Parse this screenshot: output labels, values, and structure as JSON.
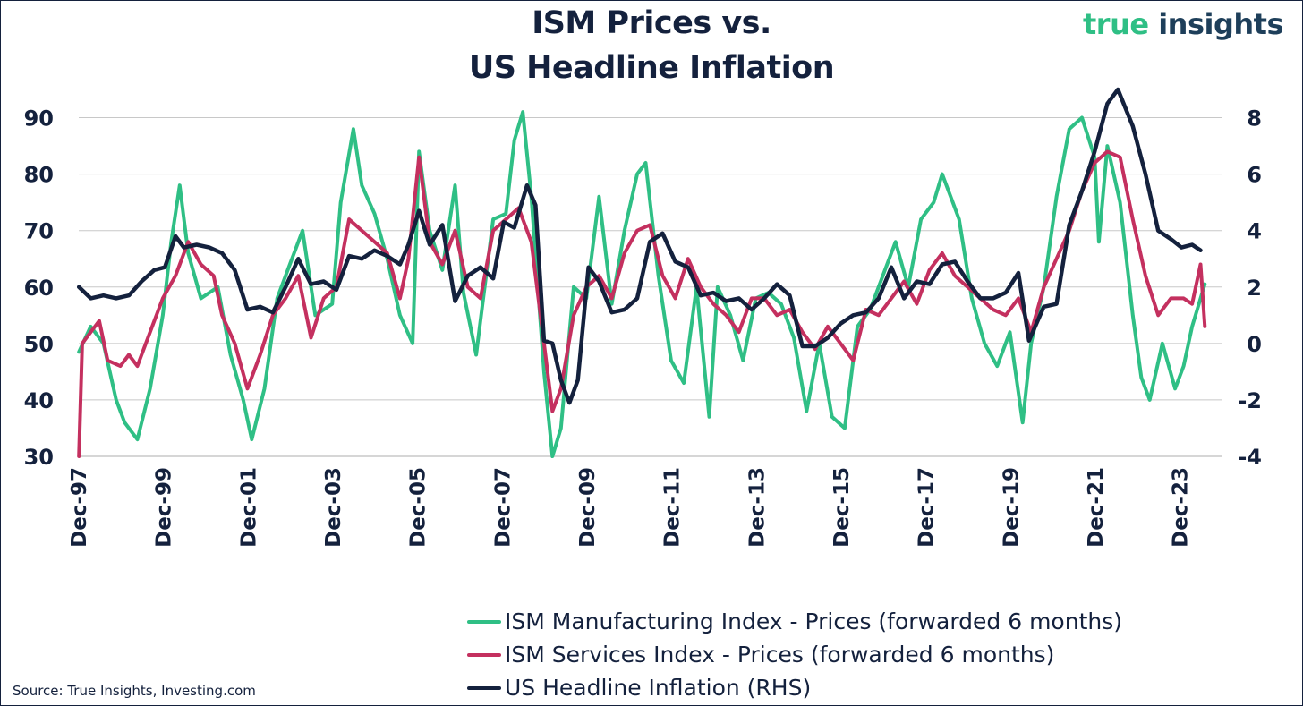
{
  "title_line1": "ISM Prices vs.",
  "title_line2": "US Headline Inflation",
  "logo_word1": "true",
  "logo_word2": "insights",
  "source": "Source: True Insights, Investing.com",
  "colors": {
    "manufacturing": "#2fbf85",
    "services": "#c4305f",
    "inflation": "#14213d",
    "grid": "#c8c8c8",
    "logo_green": "#2fbf85",
    "logo_navy": "#1e3f5a"
  },
  "chart_data": {
    "type": "line",
    "x_start": "Dec-97",
    "x_end": "Jun-24",
    "x_ticks": [
      "Dec-97",
      "Dec-99",
      "Dec-01",
      "Dec-03",
      "Dec-05",
      "Dec-07",
      "Dec-09",
      "Dec-11",
      "Dec-13",
      "Dec-15",
      "Dec-17",
      "Dec-19",
      "Dec-21",
      "Dec-23"
    ],
    "y_left": {
      "min": 30,
      "max": 95,
      "ticks": [
        30,
        40,
        50,
        60,
        70,
        80,
        90
      ]
    },
    "y_right": {
      "min": -4,
      "max": 9,
      "ticks": [
        -4,
        -2,
        0,
        2,
        4,
        6,
        8
      ]
    },
    "grid": "horizontal",
    "legend_position": "bottom-center",
    "series": [
      {
        "name": "ISM Manufacturing Index - Prices (forwarded 6 months)",
        "axis": "left",
        "x": [
          1997.92,
          1998.2,
          1998.5,
          1998.8,
          1999.0,
          1999.3,
          1999.6,
          1999.9,
          2000.1,
          2000.3,
          2000.5,
          2000.8,
          2001.2,
          2001.5,
          2001.8,
          2002.0,
          2002.3,
          2002.6,
          2002.9,
          2003.2,
          2003.5,
          2003.9,
          2004.1,
          2004.4,
          2004.6,
          2004.9,
          2005.2,
          2005.5,
          2005.8,
          2005.95,
          2006.2,
          2006.5,
          2006.8,
          2007.0,
          2007.3,
          2007.7,
          2008.0,
          2008.2,
          2008.4,
          2008.6,
          2008.9,
          2009.1,
          2009.3,
          2009.6,
          2009.9,
          2010.2,
          2010.5,
          2010.8,
          2011.1,
          2011.3,
          2011.6,
          2011.9,
          2012.2,
          2012.5,
          2012.8,
          2013.0,
          2013.3,
          2013.6,
          2013.9,
          2014.2,
          2014.5,
          2014.8,
          2015.1,
          2015.4,
          2015.7,
          2016.0,
          2016.3,
          2016.6,
          2016.9,
          2017.2,
          2017.5,
          2017.8,
          2018.1,
          2018.3,
          2018.5,
          2018.7,
          2019.0,
          2019.3,
          2019.6,
          2019.9,
          2020.2,
          2020.4,
          2020.7,
          2021.0,
          2021.3,
          2021.6,
          2021.9,
          2022.0,
          2022.2,
          2022.5,
          2022.8,
          2023.0,
          2023.2,
          2023.5,
          2023.8,
          2024.0,
          2024.2,
          2024.5
        ],
        "values": [
          48.5,
          53.0,
          50.0,
          40.0,
          36.0,
          33.0,
          42.0,
          55.0,
          68.0,
          78.0,
          66.0,
          58.0,
          60.0,
          48.0,
          40.0,
          33.0,
          42.0,
          58.0,
          64.0,
          70.0,
          55.0,
          57.0,
          75.0,
          88.0,
          78.0,
          73.0,
          65.0,
          55.0,
          50.0,
          84.0,
          70.0,
          63.0,
          78.0,
          59.0,
          48.0,
          72.0,
          73.0,
          86.0,
          91.0,
          76.0,
          45.0,
          30.0,
          35.0,
          60.0,
          58.0,
          76.0,
          57.0,
          70.0,
          80.0,
          82.0,
          62.0,
          47.0,
          43.0,
          60.0,
          37.0,
          60.0,
          55.0,
          47.0,
          58.0,
          59.0,
          57.0,
          51.0,
          38.0,
          50.0,
          37.0,
          35.0,
          53.0,
          56.0,
          62.0,
          68.0,
          60.0,
          72.0,
          75.0,
          80.0,
          76.0,
          72.0,
          58.0,
          50.0,
          46.0,
          52.0,
          36.0,
          50.0,
          60.0,
          76.0,
          88.0,
          90.0,
          83.0,
          68.0,
          85.0,
          75.0,
          55.0,
          44.0,
          40.0,
          50.0,
          42.0,
          46.0,
          53.0,
          60.5
        ]
      },
      {
        "name": "ISM Services Index - Prices (forwarded 6 months)",
        "axis": "left",
        "x": [
          1997.92,
          1998.0,
          1998.2,
          1998.4,
          1998.6,
          1998.9,
          1999.1,
          1999.3,
          1999.6,
          1999.9,
          2000.2,
          2000.5,
          2000.8,
          2001.1,
          2001.3,
          2001.6,
          2001.9,
          2002.2,
          2002.5,
          2002.8,
          2003.1,
          2003.4,
          2003.7,
          2004.0,
          2004.3,
          2004.6,
          2004.9,
          2005.2,
          2005.5,
          2005.7,
          2005.95,
          2006.2,
          2006.5,
          2006.8,
          2007.1,
          2007.4,
          2007.7,
          2008.0,
          2008.3,
          2008.6,
          2008.9,
          2009.1,
          2009.3,
          2009.6,
          2009.9,
          2010.2,
          2010.5,
          2010.8,
          2011.1,
          2011.4,
          2011.7,
          2012.0,
          2012.3,
          2012.6,
          2012.9,
          2013.2,
          2013.5,
          2013.8,
          2014.1,
          2014.4,
          2014.7,
          2015.0,
          2015.3,
          2015.6,
          2015.9,
          2016.2,
          2016.5,
          2016.8,
          2017.1,
          2017.4,
          2017.7,
          2018.0,
          2018.3,
          2018.6,
          2018.9,
          2019.2,
          2019.5,
          2019.8,
          2020.1,
          2020.4,
          2020.7,
          2021.0,
          2021.3,
          2021.6,
          2021.9,
          2022.2,
          2022.5,
          2022.8,
          2023.1,
          2023.4,
          2023.7,
          2024.0,
          2024.2,
          2024.4,
          2024.5
        ],
        "values": [
          30.0,
          50.0,
          52.0,
          54.0,
          47.0,
          46.0,
          48.0,
          46.0,
          52.0,
          58.0,
          62.0,
          68.0,
          64.0,
          62.0,
          55.0,
          50.0,
          42.0,
          48.0,
          55.0,
          58.0,
          62.0,
          51.0,
          58.0,
          60.0,
          72.0,
          70.0,
          68.0,
          66.0,
          58.0,
          65.0,
          83.0,
          68.0,
          64.0,
          70.0,
          60.0,
          58.0,
          70.0,
          72.0,
          74.0,
          68.0,
          50.0,
          38.0,
          42.0,
          55.0,
          60.0,
          62.0,
          58.0,
          66.0,
          70.0,
          71.0,
          62.0,
          58.0,
          65.0,
          60.0,
          57.0,
          55.0,
          52.0,
          58.0,
          58.0,
          55.0,
          56.0,
          52.0,
          49.0,
          53.0,
          50.0,
          47.0,
          56.0,
          55.0,
          58.0,
          61.0,
          57.0,
          63.0,
          66.0,
          62.0,
          60.0,
          58.0,
          56.0,
          55.0,
          58.0,
          52.0,
          60.0,
          65.0,
          70.0,
          77.0,
          82.0,
          84.0,
          83.0,
          72.0,
          62.0,
          55.0,
          58.0,
          58.0,
          57.0,
          64.0,
          53.0
        ]
      },
      {
        "name": "US Headline Inflation (RHS)",
        "axis": "right",
        "x": [
          1997.92,
          1998.2,
          1998.5,
          1998.8,
          1999.1,
          1999.4,
          1999.7,
          1999.95,
          2000.2,
          2000.4,
          2000.7,
          2001.0,
          2001.3,
          2001.6,
          2001.9,
          2002.2,
          2002.5,
          2002.8,
          2003.1,
          2003.4,
          2003.7,
          2004.0,
          2004.3,
          2004.6,
          2004.9,
          2005.2,
          2005.5,
          2005.7,
          2005.95,
          2006.2,
          2006.5,
          2006.8,
          2007.1,
          2007.4,
          2007.7,
          2007.95,
          2008.2,
          2008.5,
          2008.7,
          2008.9,
          2009.1,
          2009.3,
          2009.5,
          2009.7,
          2009.95,
          2010.2,
          2010.5,
          2010.8,
          2011.1,
          2011.4,
          2011.7,
          2012.0,
          2012.3,
          2012.6,
          2012.9,
          2013.2,
          2013.5,
          2013.8,
          2014.1,
          2014.4,
          2014.7,
          2015.0,
          2015.3,
          2015.6,
          2015.9,
          2016.2,
          2016.5,
          2016.8,
          2017.1,
          2017.4,
          2017.7,
          2018.0,
          2018.3,
          2018.6,
          2018.9,
          2019.2,
          2019.5,
          2019.8,
          2020.1,
          2020.35,
          2020.7,
          2021.0,
          2021.3,
          2021.6,
          2021.9,
          2022.2,
          2022.45,
          2022.8,
          2023.1,
          2023.4,
          2023.7,
          2023.95,
          2024.2,
          2024.4
        ],
        "values": [
          2.0,
          1.6,
          1.7,
          1.6,
          1.7,
          2.2,
          2.6,
          2.7,
          3.8,
          3.4,
          3.5,
          3.4,
          3.2,
          2.6,
          1.2,
          1.3,
          1.1,
          2.0,
          3.0,
          2.1,
          2.2,
          1.9,
          3.1,
          3.0,
          3.3,
          3.1,
          2.8,
          3.5,
          4.7,
          3.5,
          4.2,
          1.5,
          2.4,
          2.7,
          2.3,
          4.3,
          4.1,
          5.6,
          4.9,
          0.1,
          0.0,
          -1.3,
          -2.1,
          -1.3,
          2.7,
          2.2,
          1.1,
          1.2,
          1.6,
          3.6,
          3.9,
          2.9,
          2.7,
          1.7,
          1.8,
          1.5,
          1.6,
          1.2,
          1.6,
          2.1,
          1.7,
          -0.1,
          -0.1,
          0.2,
          0.7,
          1.0,
          1.1,
          1.6,
          2.7,
          1.6,
          2.2,
          2.1,
          2.8,
          2.9,
          2.2,
          1.6,
          1.6,
          1.8,
          2.5,
          0.1,
          1.3,
          1.4,
          4.2,
          5.4,
          6.8,
          8.5,
          9.0,
          7.7,
          6.0,
          4.0,
          3.7,
          3.4,
          3.5,
          3.3
        ]
      }
    ]
  }
}
